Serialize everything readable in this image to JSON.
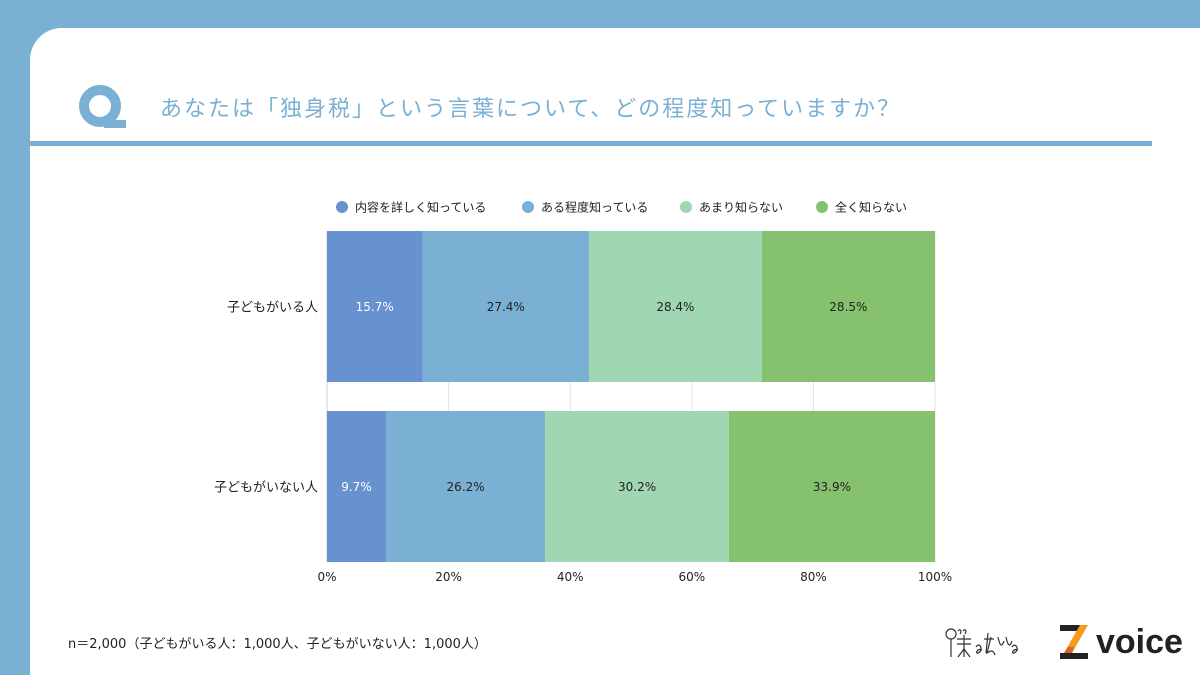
{
  "header": {
    "q_letter": "Q",
    "title": "あなたは「独身税」という言葉について、どの程度知っていますか？"
  },
  "chart_data": {
    "type": "bar",
    "orientation": "horizontal-stacked-100",
    "categories": [
      "子どもがいる人",
      "子どもがいない人"
    ],
    "series": [
      {
        "name": "内容を詳しく知っている",
        "color": "#6891cf",
        "values": [
          15.7,
          9.7
        ],
        "labels": [
          "15.7%",
          "9.7%"
        ]
      },
      {
        "name": "ある程度知っている",
        "color": "#7ab0d3",
        "values": [
          27.4,
          26.2
        ],
        "labels": [
          "27.4%",
          "26.2%"
        ]
      },
      {
        "name": "あまり知らない",
        "color": "#a1d6b3",
        "values": [
          28.4,
          30.2
        ],
        "labels": [
          "28.4%",
          "30.2%"
        ]
      },
      {
        "name": "全く知らない",
        "color": "#85c16e",
        "values": [
          28.5,
          33.9
        ],
        "labels": [
          "28.5%",
          "33.9%"
        ]
      }
    ],
    "xlim": [
      0,
      100
    ],
    "xticks": [
      "0%",
      "20%",
      "40%",
      "60%",
      "80%",
      "100%"
    ],
    "legend_position": "top",
    "grid": true
  },
  "footnote": "n＝2,000（子どもがいる人：1,000人、子どもがいない人：1,000人）",
  "logos": {
    "handwritten": "僕と私と",
    "brand": "voice"
  }
}
